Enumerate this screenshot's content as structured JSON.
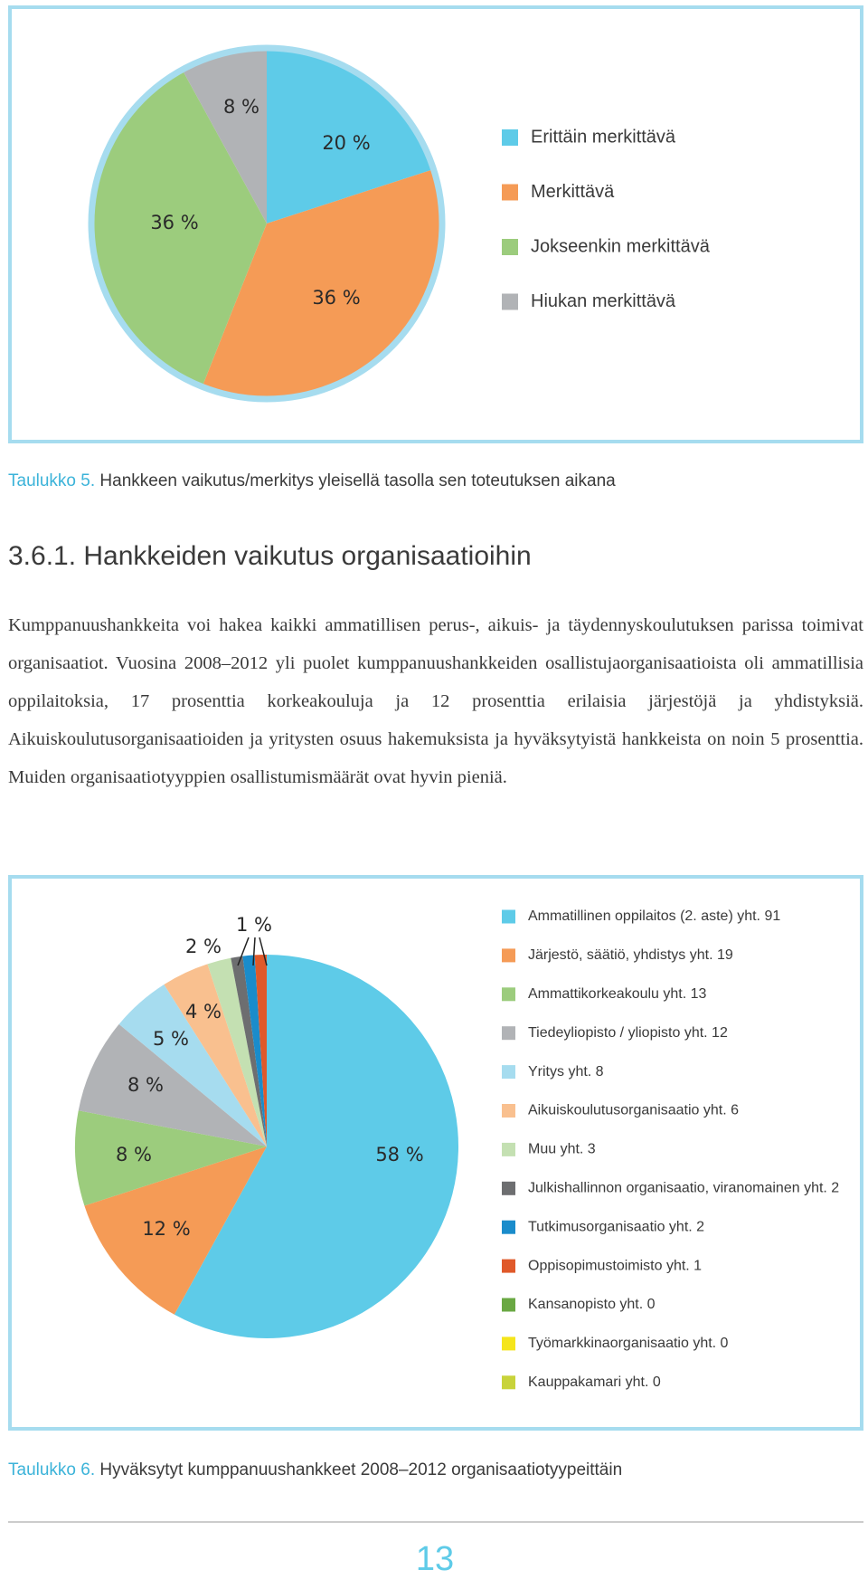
{
  "chart_data": [
    {
      "type": "pie",
      "categories": [
        "Erittäin merkittävä",
        "Merkittävä",
        "Jokseenkin merkittävä",
        "Hiukan merkittävä"
      ],
      "values": [
        20,
        36,
        36,
        8
      ],
      "value_labels": [
        "20 %",
        "36 %",
        "36 %",
        "8 %"
      ],
      "colors": [
        "#5ecbe8",
        "#f59b56",
        "#9ccc7d",
        "#b1b3b6"
      ]
    },
    {
      "type": "pie",
      "categories": [
        "Ammatillinen oppilaitos (2. aste) yht. 91",
        "Järjestö, säätiö, yhdistys yht. 19",
        "Ammattikorkeakoulu yht. 13",
        "Tiedeyliopisto / yliopisto yht. 12",
        "Yritys yht. 8",
        "Aikuiskoulutusorganisaatio yht. 6",
        "Muu yht. 3",
        "Julkishallinnon organisaatio, viranomainen yht. 2",
        "Tutkimusorganisaatio yht. 2",
        "Oppisopimustoimisto yht. 1",
        "Kansanopisto yht. 0",
        "Työmarkkinaorganisaatio yht. 0",
        "Kauppakamari yht. 0"
      ],
      "values": [
        58,
        12,
        8,
        8,
        5,
        4,
        2,
        1,
        1,
        1,
        0,
        0,
        0
      ],
      "value_labels": [
        "58 %",
        "12 %",
        "8 %",
        "8 %",
        "5 %",
        "4 %",
        "2 %",
        "1 %",
        null,
        null,
        null,
        null,
        null
      ],
      "colors": [
        "#5ecbe8",
        "#f59b56",
        "#9ccc7d",
        "#b1b3b6",
        "#a6dcef",
        "#f9c08f",
        "#c4e0b2",
        "#6d6e70",
        "#1a8ccb",
        "#e0592a",
        "#6aa843",
        "#f5e51b",
        "#c8d33a"
      ]
    }
  ],
  "captions": [
    {
      "label": "Taulukko 5.",
      "text": "Hankkeen vaikutus/merkitys yleisellä tasolla sen toteutuksen aikana"
    },
    {
      "label": "Taulukko 6.",
      "text": "Hyväksytyt kumppanuushankkeet 2008–2012 organisaatiotyypeittäin"
    }
  ],
  "section_heading": "3.6.1. Hankkeiden vaikutus organisaatioihin",
  "paragraph": "Kumppanuushankkeita voi hakea kaikki ammatillisen perus-, aikuis- ja täydennyskoulutuksen parissa toimivat organisaatiot. Vuosina 2008–2012 yli puolet kumppanuushankkeiden osallistujaorganisaatioista oli ammatillisia oppilaitoksia, 17 prosenttia korkeakouluja ja 12 prosenttia erilaisia järjestöjä ja yhdistyksiä. Aikuiskoulutusorganisaatioiden ja yritysten osuus hakemuksista ja hyväksytyistä hankkeista on noin 5 prosenttia. Muiden organisaatiotyyppien osallistumismäärät ovat hyvin pieniä.",
  "page_number": "13"
}
